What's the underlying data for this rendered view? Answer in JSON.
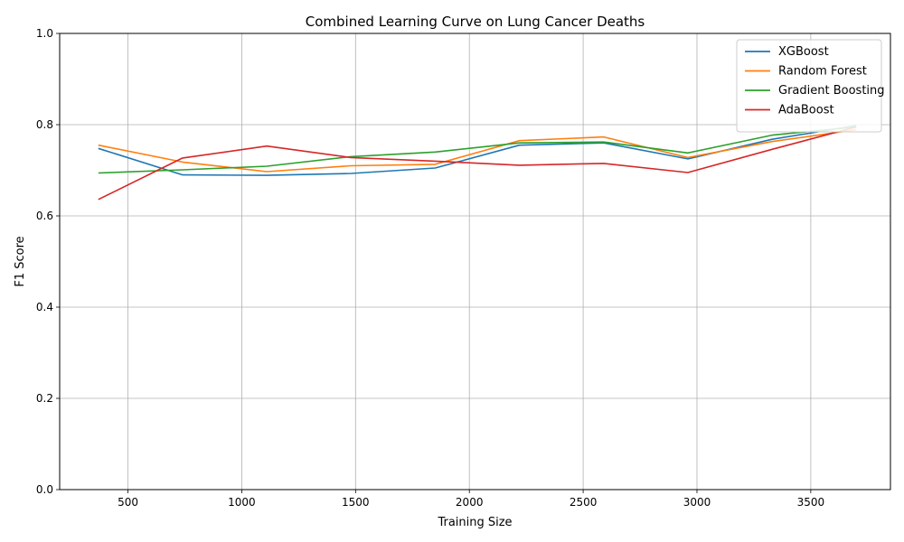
{
  "chart_data": {
    "type": "line",
    "title": "Combined Learning Curve on Lung Cancer Deaths",
    "xlabel": "Training Size",
    "ylabel": "F1 Score",
    "xlim": [
      200,
      3850
    ],
    "ylim": [
      0.0,
      1.0
    ],
    "xticks": [
      500,
      1000,
      1500,
      2000,
      2500,
      3000,
      3500
    ],
    "yticks": [
      0.0,
      0.2,
      0.4,
      0.6,
      0.8,
      1.0
    ],
    "grid": true,
    "legend_position": "top-right",
    "x": [
      370,
      740,
      1110,
      1480,
      1850,
      2220,
      2590,
      2960,
      3330,
      3700
    ],
    "series": [
      {
        "name": "XGBoost",
        "color": "#1f77b4",
        "values": [
          0.748,
          0.69,
          0.689,
          0.693,
          0.705,
          0.755,
          0.76,
          0.725,
          0.768,
          0.798
        ]
      },
      {
        "name": "Random Forest",
        "color": "#ff7f0e",
        "values": [
          0.755,
          0.718,
          0.697,
          0.71,
          0.713,
          0.765,
          0.773,
          0.728,
          0.763,
          0.789
        ]
      },
      {
        "name": "Gradient Boosting",
        "color": "#2ca02c",
        "values": [
          0.694,
          0.701,
          0.709,
          0.73,
          0.74,
          0.76,
          0.762,
          0.738,
          0.777,
          0.795
        ]
      },
      {
        "name": "AdaBoost",
        "color": "#d62728",
        "values": [
          0.636,
          0.727,
          0.753,
          0.728,
          0.72,
          0.711,
          0.715,
          0.695,
          0.746,
          0.795
        ]
      }
    ]
  }
}
